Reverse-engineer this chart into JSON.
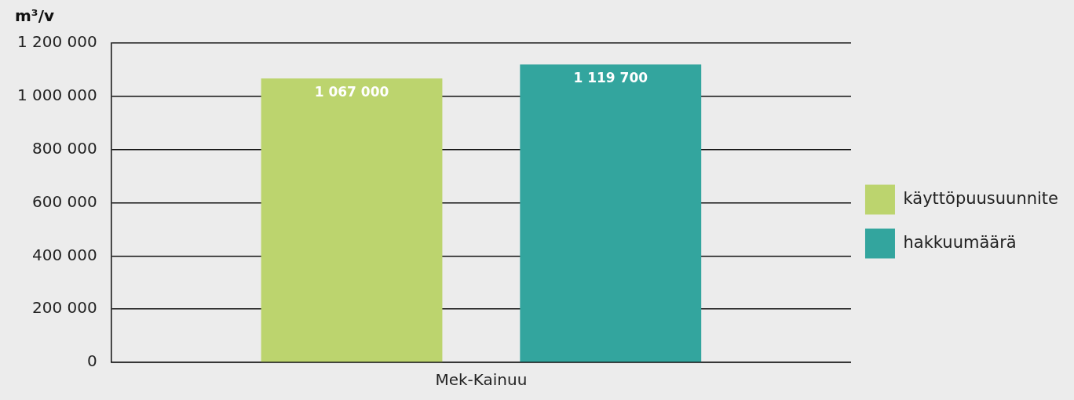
{
  "chart_data": {
    "type": "bar",
    "ylabel": "m³/v",
    "categories": [
      "Mek-Kainuu"
    ],
    "series": [
      {
        "name": "käyttöpuusuunnite",
        "color": "#bcd46e",
        "values": [
          1067000
        ],
        "value_labels": [
          "1 067 000"
        ]
      },
      {
        "name": "hakkuumäärä",
        "color": "#33a59e",
        "values": [
          1119700
        ],
        "value_labels": [
          "1 119 700"
        ]
      }
    ],
    "ylim": [
      0,
      1200000
    ],
    "yticks": [
      0,
      {
        "value": 200000,
        "label": "200 000"
      },
      {
        "value": 400000,
        "label": "400 000"
      },
      {
        "value": 600000,
        "label": "600 000"
      },
      {
        "value": 800000,
        "label": "800 000"
      },
      {
        "value": 1000000,
        "label": "1 000 000"
      },
      {
        "value": 1200000,
        "label": "1 200 000"
      }
    ],
    "grid": "y",
    "legend": "right"
  }
}
